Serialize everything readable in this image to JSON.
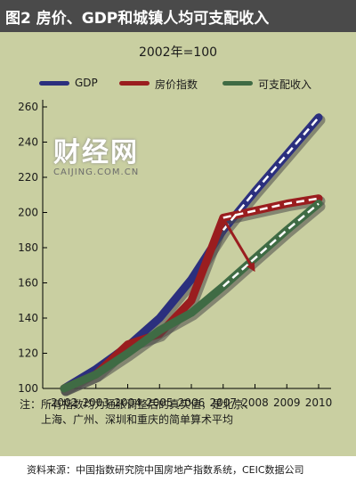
{
  "title": "图2  房价、GDP和城镇人均可支配收入",
  "subtitle": "2002年=100",
  "watermark": {
    "main": "财经网",
    "sub": "CAIJING.COM.CN"
  },
  "note_line1": "注：所有指数均为通胀调整后的真实值，是北京、",
  "note_line2": "上海、广州、深圳和重庆的简单算术平均",
  "source": "资料来源：中国指数研究院中国房地产指数系统，CEIC数据公司",
  "colors": {
    "gdp": "#2b2f7e",
    "house": "#9a1d1f",
    "income": "#3f6b44",
    "panel": "#c9cfa1"
  },
  "chart_data": {
    "type": "line",
    "x": [
      2002,
      2003,
      2004,
      2005,
      2006,
      2007,
      2008,
      2009,
      2010
    ],
    "x_tick_labels": [
      "2002",
      "2003",
      "2004",
      "2005",
      "2006",
      "2007",
      "2008",
      "2009",
      "2010"
    ],
    "y_ticks": [
      100,
      120,
      140,
      160,
      180,
      200,
      220,
      240,
      260
    ],
    "ylim": [
      100,
      260
    ],
    "grid": false,
    "legend_position": "top",
    "series": [
      {
        "name": "GDP",
        "color": "#2b2f7e",
        "values": [
          100,
          111,
          124,
          140,
          162,
          190,
          212,
          233,
          254
        ]
      },
      {
        "name": "房价指数",
        "color": "#9a1d1f",
        "values": [
          100,
          108,
          125,
          131,
          150,
          197,
          201,
          205,
          208
        ]
      },
      {
        "name": "可支配收入",
        "color": "#3f6b44",
        "values": [
          100,
          108,
          120,
          133,
          143,
          158,
          174,
          190,
          205
        ]
      }
    ]
  }
}
